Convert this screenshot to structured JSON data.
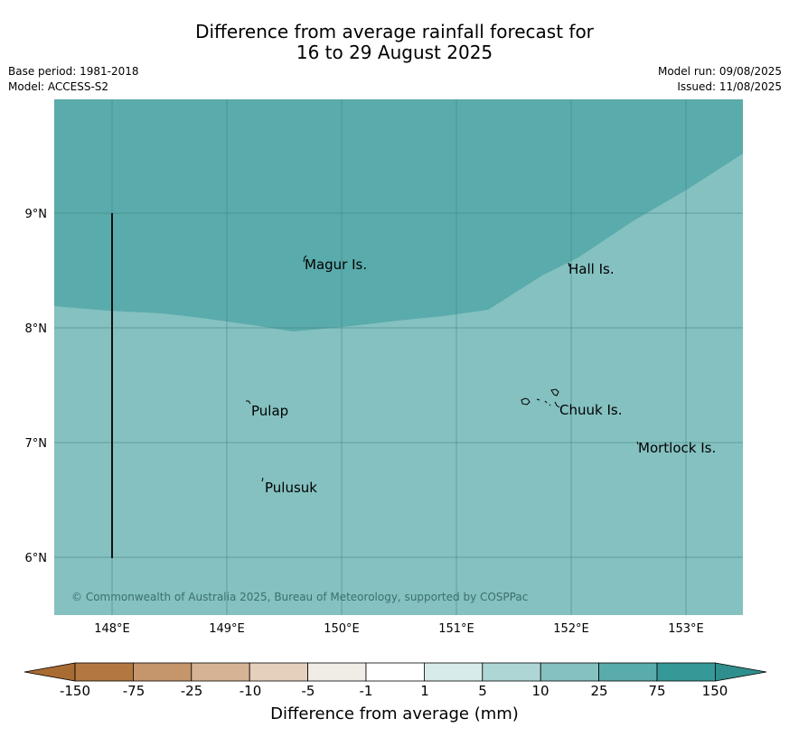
{
  "title": {
    "line1": "Difference from average rainfall forecast for",
    "line2": "16 to 29 August 2025"
  },
  "meta": {
    "base_period": "Base period: 1981-2018",
    "model": "Model: ACCESS-S2",
    "model_run": "Model run: 09/08/2025",
    "issued": "Issued: 11/08/2025"
  },
  "map": {
    "lat_ticks": [
      "9°N",
      "8°N",
      "7°N",
      "6°N"
    ],
    "lon_ticks": [
      "148°E",
      "149°E",
      "150°E",
      "151°E",
      "152°E",
      "153°E"
    ],
    "places": [
      "Magur Is.",
      "Hall Is.",
      "Pulap",
      "Chuuk Is.",
      "Mortlock Is.",
      "Pulusuk"
    ],
    "copyright": "© Commonwealth of Australia 2025, Bureau of Meteorology, supported by COSPPac",
    "fill_colors": {
      "band_25_75": "#5aabab",
      "band_10_25": "#84c1c0"
    }
  },
  "colorbar": {
    "labels": [
      "-150",
      "-75",
      "-25",
      "-10",
      "-5",
      "-1",
      "1",
      "5",
      "10",
      "25",
      "75",
      "150"
    ],
    "colors": [
      "#a86b31",
      "#b37841",
      "#c5956b",
      "#d5b394",
      "#e5d0bd",
      "#f0ede6",
      "#ffffff",
      "#d7ebea",
      "#aed6d5",
      "#84c1c0",
      "#5aabab",
      "#359998",
      "#2f8f8e"
    ],
    "title": "Difference from average (mm)"
  }
}
